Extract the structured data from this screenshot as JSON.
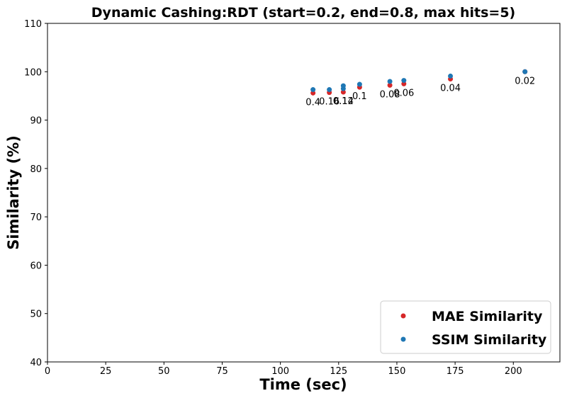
{
  "chart_data": {
    "type": "scatter",
    "title": "Dynamic Cashing:RDT (start=0.2, end=0.8, max hits=5)",
    "xlabel": "Time (sec)",
    "ylabel": "Similarity (%)",
    "xlim": [
      0,
      220
    ],
    "ylim": [
      40,
      110
    ],
    "xticks": [
      0,
      25,
      50,
      75,
      100,
      125,
      150,
      175,
      200
    ],
    "yticks": [
      40,
      50,
      60,
      70,
      80,
      90,
      100,
      110
    ],
    "grid": false,
    "legend_position": "lower-right",
    "series": [
      {
        "name": "MAE Similarity",
        "color": "#d62728",
        "points": [
          {
            "x": 114,
            "y": 95.6
          },
          {
            "x": 121,
            "y": 95.7
          },
          {
            "x": 127,
            "y": 95.8
          },
          {
            "x": 134,
            "y": 96.8
          },
          {
            "x": 147,
            "y": 97.2
          },
          {
            "x": 153,
            "y": 97.5
          },
          {
            "x": 173,
            "y": 98.5
          },
          {
            "x": 205,
            "y": 100.0
          }
        ]
      },
      {
        "name": "SSIM Similarity",
        "color": "#1f77b4",
        "points": [
          {
            "x": 114,
            "y": 96.3
          },
          {
            "x": 121,
            "y": 96.3
          },
          {
            "x": 127,
            "y": 96.5
          },
          {
            "x": 127,
            "y": 97.1
          },
          {
            "x": 134,
            "y": 97.4
          },
          {
            "x": 147,
            "y": 98.0
          },
          {
            "x": 153,
            "y": 98.2
          },
          {
            "x": 173,
            "y": 99.1
          },
          {
            "x": 205,
            "y": 100.0
          }
        ]
      }
    ],
    "annotations": [
      {
        "text": "0.4",
        "x": 114,
        "y": 95.6
      },
      {
        "text": "0.16",
        "x": 121,
        "y": 95.7
      },
      {
        "text": "0.12",
        "x": 127,
        "y": 95.8
      },
      {
        "text": "0.14",
        "x": 127,
        "y": 95.8
      },
      {
        "text": "0.1",
        "x": 134,
        "y": 96.8
      },
      {
        "text": "0.08",
        "x": 147,
        "y": 97.2
      },
      {
        "text": "0.06",
        "x": 153,
        "y": 97.5
      },
      {
        "text": "0.04",
        "x": 173,
        "y": 98.5
      },
      {
        "text": "0.02",
        "x": 205,
        "y": 100.0
      }
    ]
  }
}
